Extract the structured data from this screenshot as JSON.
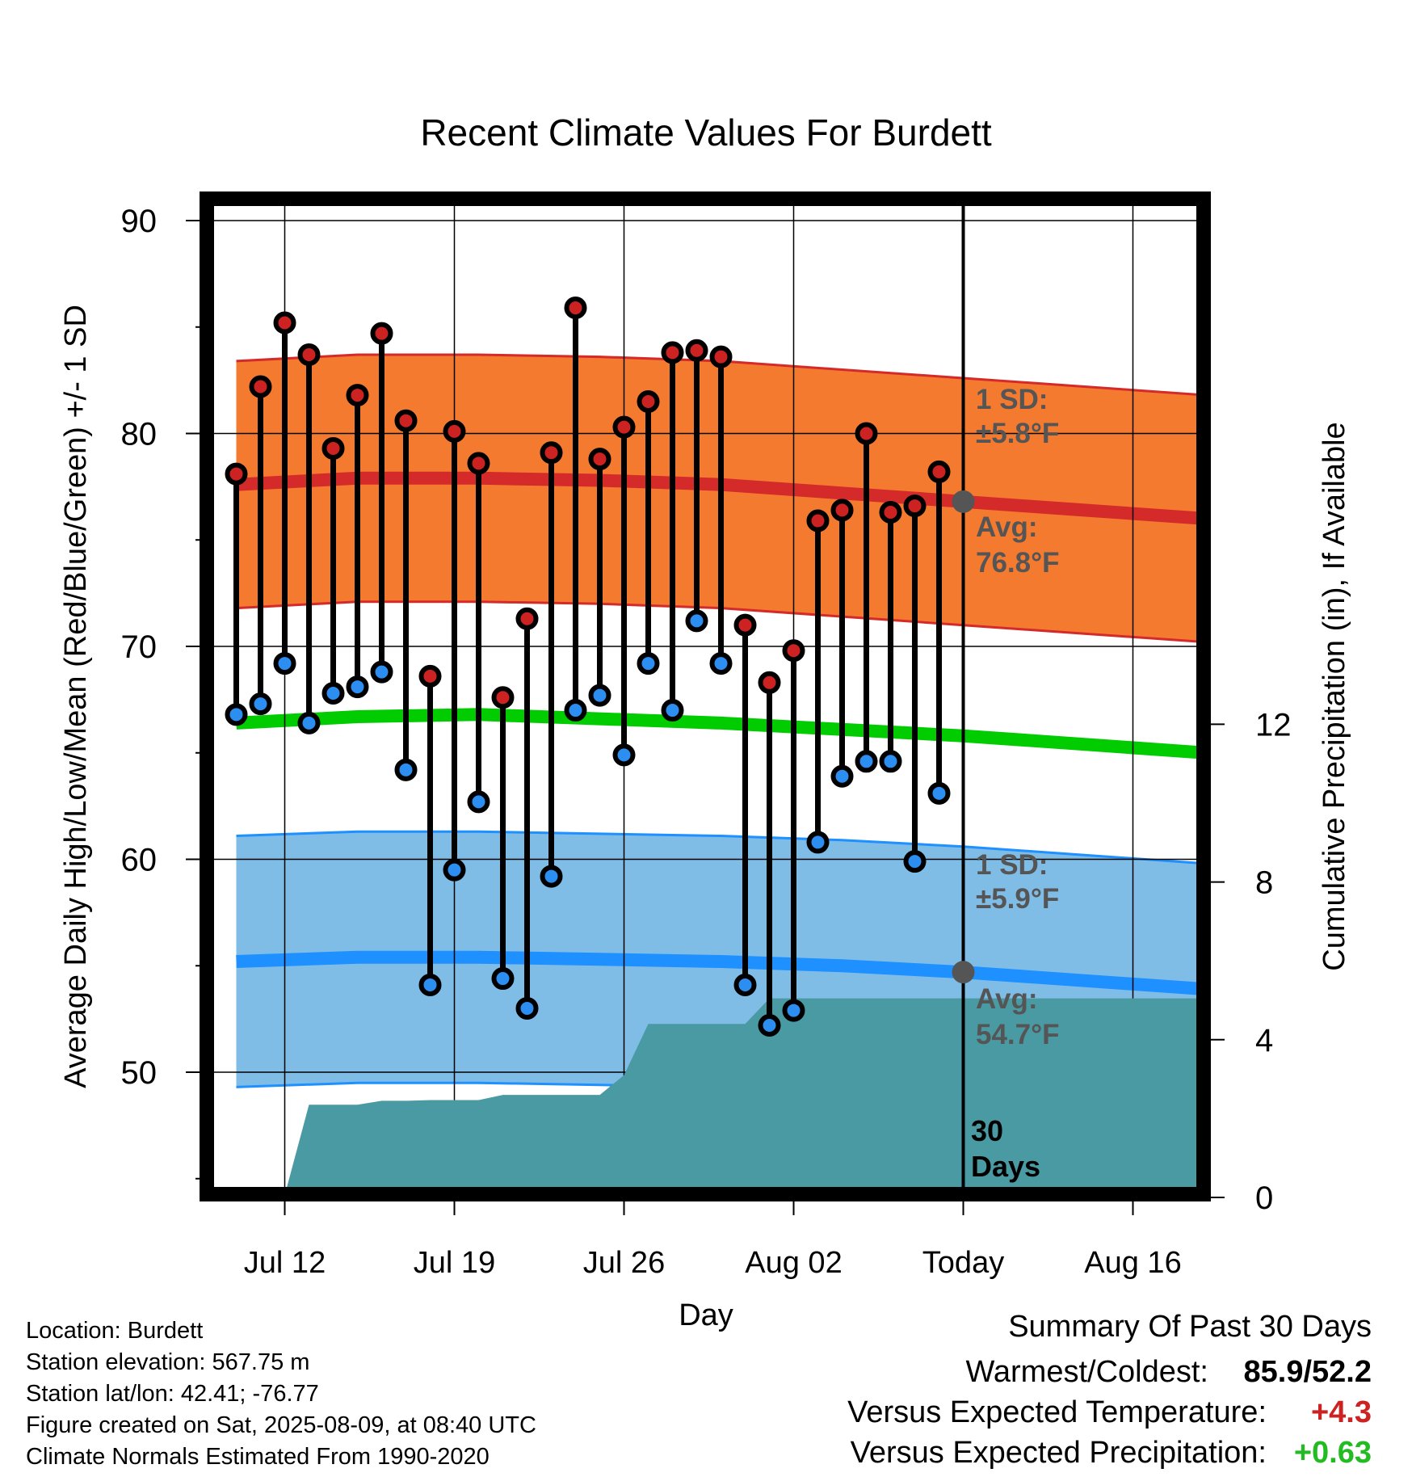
{
  "chart_data": {
    "type": "line",
    "title": "Recent Climate Values For Burdett",
    "xlabel": "Day",
    "ylabel": "Average Daily High/Low/Mean (Red/Blue/Green) +/- 1 SD",
    "y2label": "Cumulative Precipitation (in), If Available",
    "ylim": [
      44.5,
      91
    ],
    "y2lim": [
      0,
      23.75
    ],
    "y_ticks": [
      50,
      60,
      70,
      80,
      90
    ],
    "y2_ticks": [
      0,
      4,
      8,
      12
    ],
    "x_ticks": [
      "Jul 12",
      "Jul 19",
      "Jul 26",
      "Aug 02",
      "Today",
      "Aug 16"
    ],
    "x_dates": [
      "Jul 10",
      "Jul 11",
      "Jul 12",
      "Jul 13",
      "Jul 14",
      "Jul 15",
      "Jul 16",
      "Jul 17",
      "Jul 18",
      "Jul 19",
      "Jul 20",
      "Jul 21",
      "Jul 22",
      "Jul 23",
      "Jul 24",
      "Jul 25",
      "Jul 26",
      "Jul 27",
      "Jul 28",
      "Jul 29",
      "Jul 30",
      "Jul 31",
      "Aug 01",
      "Aug 02",
      "Aug 03",
      "Aug 04",
      "Aug 05",
      "Aug 06",
      "Aug 07",
      "Aug 08"
    ],
    "daily_high": [
      78.1,
      82.2,
      85.2,
      83.7,
      79.3,
      81.8,
      84.7,
      80.6,
      68.6,
      80.1,
      78.6,
      67.6,
      71.3,
      79.1,
      85.9,
      78.8,
      80.3,
      81.5,
      83.8,
      83.9,
      83.6,
      71.0,
      68.3,
      69.8,
      75.9,
      76.4,
      80.0,
      76.3,
      76.6,
      78.2
    ],
    "daily_low": [
      66.8,
      67.3,
      69.2,
      66.4,
      67.8,
      68.1,
      68.8,
      64.2,
      54.1,
      59.5,
      62.7,
      54.4,
      53.0,
      59.2,
      67.0,
      67.7,
      64.9,
      69.2,
      67.0,
      71.2,
      69.2,
      54.1,
      52.2,
      52.9,
      60.8,
      63.9,
      64.6,
      64.6,
      59.9,
      63.1
    ],
    "normal_high": {
      "x": [
        "Jul 10",
        "Jul 15",
        "Jul 20",
        "Jul 25",
        "Jul 30",
        "Aug 04",
        "Aug 09",
        "Aug 14",
        "Aug 19"
      ],
      "values": [
        77.6,
        77.9,
        77.9,
        77.8,
        77.6,
        77.2,
        76.8,
        76.4,
        76.0
      ]
    },
    "normal_high_sd": 5.8,
    "normal_low": {
      "x": [
        "Jul 10",
        "Jul 15",
        "Jul 20",
        "Jul 25",
        "Jul 30",
        "Aug 04",
        "Aug 09",
        "Aug 14",
        "Aug 19"
      ],
      "values": [
        55.2,
        55.4,
        55.4,
        55.3,
        55.2,
        55.0,
        54.7,
        54.3,
        53.9
      ]
    },
    "normal_low_sd": 5.9,
    "normal_mean": {
      "x": [
        "Jul 10",
        "Jul 15",
        "Jul 20",
        "Jul 25",
        "Jul 30",
        "Aug 04",
        "Aug 09",
        "Aug 14",
        "Aug 19"
      ],
      "values": [
        66.4,
        66.7,
        66.8,
        66.6,
        66.4,
        66.1,
        65.8,
        65.4,
        65.0
      ]
    },
    "cumulative_precip": {
      "x": [
        "Jul 09",
        "Jul 10",
        "Jul 11",
        "Jul 12",
        "Jul 13",
        "Jul 14",
        "Jul 15",
        "Jul 16",
        "Jul 17",
        "Jul 18",
        "Jul 19",
        "Jul 20",
        "Jul 21",
        "Jul 22",
        "Jul 23",
        "Jul 24",
        "Jul 25",
        "Jul 26",
        "Jul 27",
        "Jul 28",
        "Jul 29",
        "Jul 30",
        "Jul 31",
        "Aug 01",
        "Aug 02",
        "Aug 03",
        "Aug 04",
        "Aug 05",
        "Aug 06",
        "Aug 07",
        "Aug 08",
        "Aug 19"
      ],
      "values": [
        0.0,
        0.0,
        0.05,
        0.06,
        2.35,
        2.35,
        2.35,
        2.45,
        2.45,
        2.47,
        2.47,
        2.47,
        2.6,
        2.6,
        2.6,
        2.6,
        2.6,
        3.1,
        4.4,
        4.4,
        4.4,
        4.4,
        4.4,
        5.05,
        5.05,
        5.05,
        5.05,
        5.05,
        5.05,
        5.05,
        5.05,
        5.05
      ]
    },
    "today_markers": {
      "avg_high": 76.8,
      "avg_low": 54.7
    },
    "grid": true,
    "colors": {
      "high_band": "#f47a30",
      "high_line": "#d42a2a",
      "low_band": "#7fbde6",
      "low_line": "#1e90ff",
      "mean_line": "#00cc00",
      "precip_fill": "#4a9aa4",
      "high_dot": "#cc2222",
      "low_dot": "#2b8ef0",
      "today_dot": "#555555"
    }
  },
  "annotations": {
    "high_sd_line1": "1 SD:",
    "high_sd_line2": "±5.8°F",
    "high_avg_line1": "Avg:",
    "high_avg_line2": "76.8°F",
    "low_sd_line1": "1 SD:",
    "low_sd_line2": "±5.9°F",
    "low_avg_line1": "Avg:",
    "low_avg_line2": "54.7°F",
    "days_line1": "30",
    "days_line2": "Days"
  },
  "info": {
    "location": "Location: Burdett",
    "elevation": "Station elevation: 567.75 m",
    "latlon": "Station lat/lon: 42.41; -76.77",
    "created": "Figure created on Sat, 2025-08-09, at 08:40 UTC",
    "normals": "Climate Normals Estimated From 1990-2020"
  },
  "summary": {
    "title": "Summary Of Past 30 Days",
    "warm_cold_label": "Warmest/Coldest:",
    "warm_cold_value": "85.9/52.2",
    "temp_label": "Versus Expected Temperature:",
    "temp_value": "+4.3",
    "temp_color": "#cc2222",
    "precip_label": "Versus Expected Precipitation:",
    "precip_value": "+0.63",
    "precip_color": "#22bb22"
  }
}
